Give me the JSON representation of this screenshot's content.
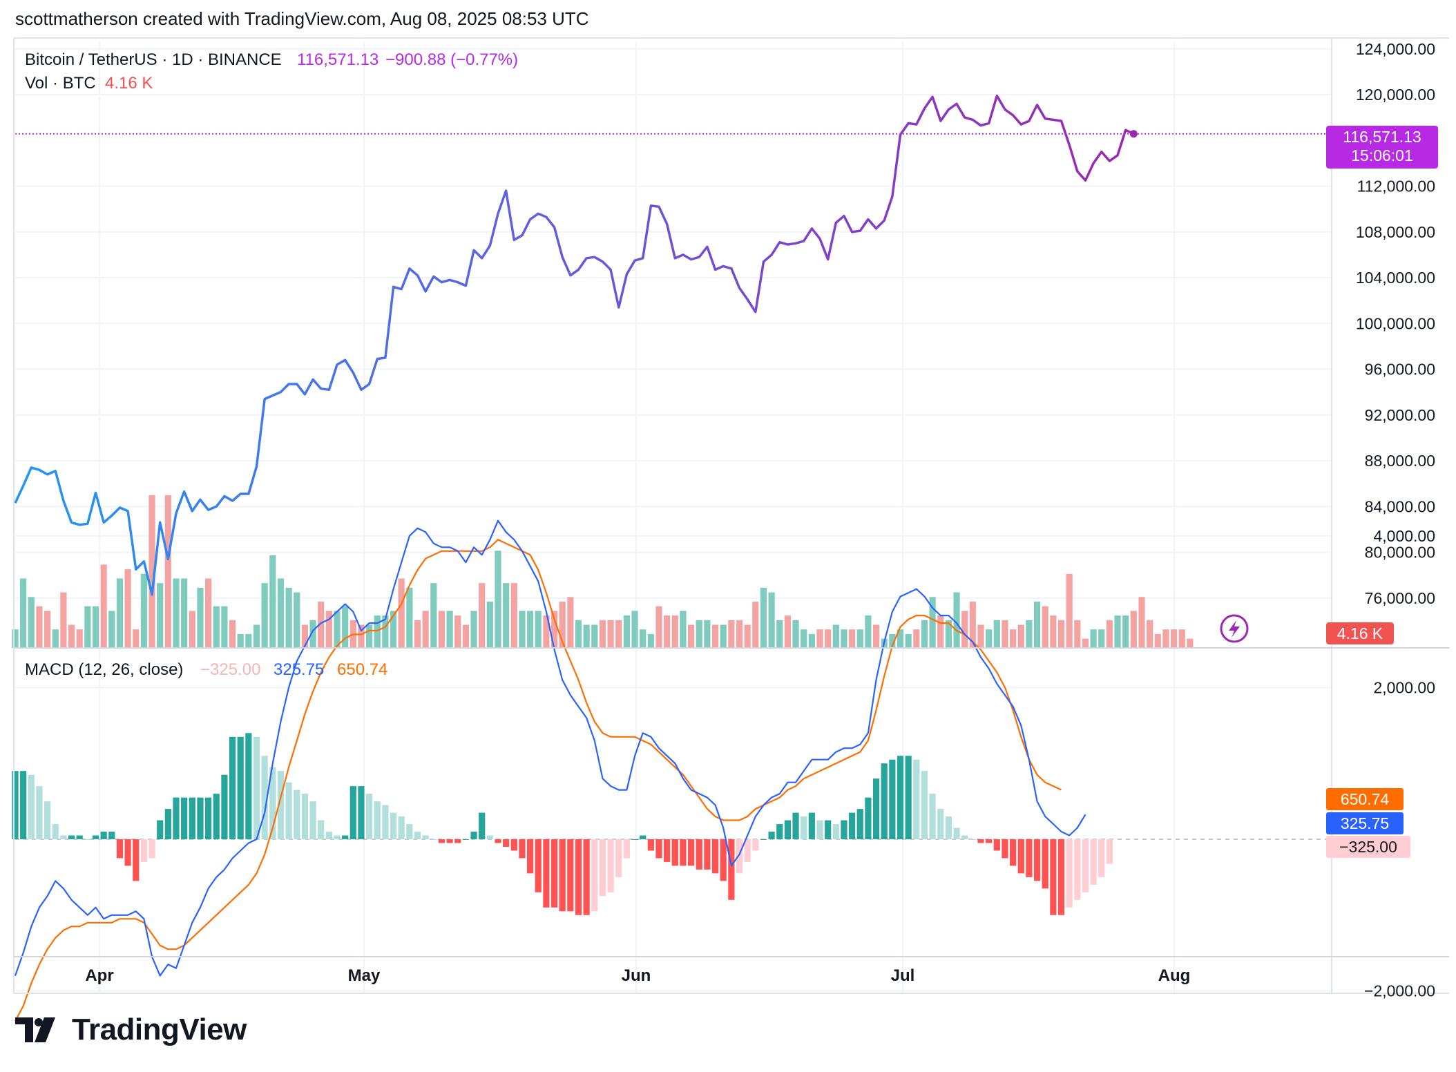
{
  "header": {
    "attribution": "scottmatherson created with TradingView.com, Aug 08, 2025 08:53 UTC"
  },
  "legend": {
    "symbol": "Bitcoin / TetherUS · 1D · BINANCE",
    "last_price": "116,571.13",
    "change": "−900.88 (−0.77%)",
    "volume_label": "Vol · BTC",
    "volume_value": "4.16 K",
    "macd_label": "MACD (12, 26, close)",
    "macd_hist_value": "−325.00",
    "macd_value": "325.75",
    "signal_value": "650.74"
  },
  "price_scale": {
    "ticks": [
      "124,000.00",
      "120,000.00",
      "112,000.00",
      "108,000.00",
      "104,000.00",
      "100,000.00",
      "96,000.00",
      "92,000.00",
      "88,000.00",
      "84,000.00",
      "80,000.00",
      "76,000.00"
    ],
    "last_price_badge": "116,571.13",
    "countdown": "15:06:01",
    "volume_badge": "4.16 K"
  },
  "macd_scale": {
    "ticks": [
      "4,000.00",
      "2,000.00",
      "−2,000.00"
    ],
    "signal_badge": "650.74",
    "macd_badge": "325.75",
    "hist_badge": "−325.00"
  },
  "time_axis": {
    "labels": [
      "Apr",
      "May",
      "Jun",
      "Jul",
      "Aug"
    ]
  },
  "brand": {
    "name": "TradingView"
  },
  "colors": {
    "price_up": "#9c27b0",
    "price_start": "#2196f3",
    "vol_up": "#7fcbbd",
    "vol_down": "#f4a3a3",
    "macd_line": "#2962ff",
    "signal_line": "#ff6d00",
    "hist_up_strong": "#26a69a",
    "hist_up_weak": "#b2dfdb",
    "hist_down_strong": "#ff5252",
    "hist_down_weak": "#ffcdd2",
    "last_price_badge": "#b829e3",
    "volume_badge": "#f05350",
    "bolt_icon": "#9c27b0"
  },
  "chart_data": [
    {
      "type": "line",
      "title": "Bitcoin / TetherUS · 1D · BINANCE",
      "y_range": [
        73000,
        125500
      ],
      "x_labels": [
        "Apr",
        "May",
        "Jun",
        "Jul",
        "Aug"
      ],
      "series": [
        {
          "name": "Bitcoin / TetherUS",
          "values": [
            84300,
            85800,
            87400,
            87200,
            86800,
            87100,
            84500,
            82600,
            82400,
            82500,
            85200,
            82600,
            83200,
            83900,
            83600,
            78500,
            79200,
            76300,
            82600,
            79400,
            83400,
            85300,
            83600,
            84600,
            83700,
            84000,
            84900,
            84500,
            85100,
            85100,
            87500,
            93400,
            93700,
            94000,
            94700,
            94700,
            93800,
            95100,
            94300,
            94200,
            96400,
            96800,
            95700,
            94200,
            94700,
            96900,
            97000,
            103200,
            103000,
            104800,
            104200,
            102800,
            104100,
            103600,
            103800,
            103600,
            103300,
            106400,
            105700,
            106800,
            109600,
            111600,
            107300,
            107700,
            109100,
            109600,
            109300,
            108400,
            105800,
            104200,
            104700,
            105700,
            105800,
            105400,
            104700,
            101400,
            104300,
            105500,
            105700,
            110300,
            110200,
            108700,
            105700,
            106000,
            105600,
            105800,
            106700,
            104700,
            105000,
            104800,
            103100,
            102100,
            101000,
            105400,
            106000,
            107100,
            106900,
            107000,
            107200,
            108300,
            107400,
            105600,
            108800,
            109400,
            108000,
            108100,
            109100,
            108300,
            109000,
            111100,
            116500,
            117500,
            117400,
            118800,
            119800,
            117700,
            118700,
            119200,
            118000,
            117800,
            117300,
            117500,
            119900,
            118700,
            118200,
            117400,
            117700,
            119100,
            117900,
            117800,
            117700,
            115600,
            113300,
            112500,
            114000,
            115000,
            114200,
            114700,
            116900,
            116571.13
          ]
        }
      ]
    },
    {
      "type": "bar",
      "title": "Vol · BTC",
      "y_range": [
        0,
        40
      ],
      "series": [
        {
          "name": "Vol · BTC",
          "values": [
            4,
            15,
            11,
            9,
            8,
            4,
            12,
            5,
            4,
            9,
            9,
            18,
            8,
            15,
            17,
            4,
            16,
            33,
            14,
            33,
            15,
            15,
            8,
            13,
            15,
            9,
            9,
            6,
            3,
            3,
            5,
            14,
            20,
            15,
            13,
            12,
            5,
            6,
            10,
            8,
            8,
            9,
            6,
            5,
            5,
            7,
            7,
            8,
            15,
            13,
            6,
            8,
            14,
            8,
            8,
            7,
            5,
            8,
            14,
            10,
            21,
            14,
            14,
            8,
            8,
            8,
            7,
            8,
            10,
            11,
            6,
            5,
            5,
            6,
            6,
            6,
            7,
            8,
            4,
            3,
            9,
            7,
            7,
            8,
            5,
            6,
            6,
            5,
            5,
            6,
            6,
            5,
            10,
            13,
            12,
            6,
            7,
            6,
            4,
            3,
            4,
            4,
            5,
            4,
            4,
            4,
            7,
            5,
            2,
            3,
            4,
            3,
            4,
            6,
            11,
            7,
            6,
            12,
            8,
            10,
            5,
            4,
            6,
            6,
            4,
            5,
            6,
            10,
            9,
            7,
            6,
            16,
            6,
            2,
            4,
            4,
            6,
            7,
            7,
            8,
            11,
            6,
            3,
            4,
            4,
            4,
            2
          ]
        }
      ]
    },
    {
      "type": "line",
      "title": "MACD (12, 26, close)",
      "y_range": [
        -3500,
        4800
      ],
      "series": [
        {
          "name": "MACD",
          "values": [
            -1800,
            -1500,
            -1150,
            -900,
            -750,
            -550,
            -650,
            -800,
            -900,
            -1000,
            -900,
            -1050,
            -1000,
            -1000,
            -1000,
            -950,
            -1050,
            -1550,
            -1800,
            -1650,
            -1700,
            -1400,
            -1100,
            -900,
            -650,
            -500,
            -400,
            -250,
            -150,
            -50,
            0,
            350,
            1000,
            1550,
            2000,
            2350,
            2550,
            2750,
            2850,
            2900,
            3000,
            3100,
            3000,
            2750,
            2850,
            2850,
            2900,
            3300,
            3650,
            4000,
            4100,
            4050,
            3900,
            3850,
            3850,
            3800,
            3650,
            3850,
            3750,
            3950,
            4200,
            4050,
            3950,
            3800,
            3600,
            3400,
            3000,
            2500,
            2100,
            1900,
            1750,
            1600,
            1300,
            800,
            700,
            650,
            650,
            1100,
            1400,
            1350,
            1200,
            1100,
            1000,
            800,
            650,
            600,
            550,
            450,
            150,
            -350,
            -200,
            50,
            300,
            450,
            550,
            600,
            750,
            750,
            900,
            1050,
            1050,
            1050,
            1150,
            1200,
            1200,
            1250,
            1400,
            2100,
            2600,
            3000,
            3200,
            3250,
            3300,
            3200,
            3050,
            2950,
            2950,
            2850,
            2700,
            2600,
            2400,
            2250,
            2050,
            1900,
            1750,
            1500,
            1050,
            500,
            300,
            200,
            100,
            50,
            150,
            325.75
          ]
        },
        {
          "name": "Signal",
          "values": [
            -2400,
            -2200,
            -1900,
            -1650,
            -1450,
            -1300,
            -1200,
            -1150,
            -1150,
            -1100,
            -1100,
            -1100,
            -1100,
            -1050,
            -1050,
            -1050,
            -1100,
            -1250,
            -1400,
            -1450,
            -1450,
            -1400,
            -1300,
            -1200,
            -1100,
            -1000,
            -900,
            -800,
            -700,
            -600,
            -450,
            -200,
            150,
            550,
            950,
            1300,
            1650,
            1950,
            2200,
            2400,
            2550,
            2650,
            2700,
            2700,
            2750,
            2750,
            2800,
            2950,
            3100,
            3350,
            3550,
            3700,
            3750,
            3800,
            3800,
            3800,
            3800,
            3800,
            3800,
            3850,
            3950,
            3900,
            3850,
            3800,
            3750,
            3550,
            3250,
            2900,
            2600,
            2350,
            2100,
            1800,
            1550,
            1400,
            1350,
            1350,
            1350,
            1350,
            1300,
            1250,
            1150,
            1050,
            950,
            850,
            700,
            550,
            400,
            300,
            250,
            250,
            250,
            300,
            400,
            450,
            500,
            550,
            650,
            700,
            800,
            850,
            900,
            950,
            1000,
            1050,
            1100,
            1150,
            1300,
            1700,
            2150,
            2550,
            2800,
            2900,
            2950,
            2950,
            2900,
            2850,
            2850,
            2750,
            2700,
            2600,
            2500,
            2350,
            2200,
            2000,
            1700,
            1350,
            1050,
            850,
            750,
            700,
            650.74
          ]
        },
        {
          "name": "Histogram",
          "values": [
            900,
            900,
            850,
            700,
            500,
            200,
            50,
            50,
            50,
            0,
            50,
            100,
            100,
            -250,
            -350,
            -550,
            -300,
            -250,
            250,
            400,
            550,
            550,
            550,
            550,
            550,
            600,
            850,
            1350,
            1350,
            1400,
            1350,
            1100,
            950,
            900,
            750,
            650,
            600,
            500,
            250,
            100,
            50,
            50,
            700,
            700,
            600,
            500,
            450,
            350,
            300,
            200,
            100,
            50,
            0,
            -50,
            -50,
            -50,
            0,
            100,
            350,
            50,
            -50,
            -100,
            -150,
            -250,
            -450,
            -700,
            -900,
            -900,
            -950,
            -950,
            -1000,
            -1000,
            -950,
            -750,
            -700,
            -500,
            -250,
            0,
            50,
            -150,
            -250,
            -300,
            -350,
            -350,
            -350,
            -400,
            -400,
            -450,
            -550,
            -800,
            -450,
            -300,
            -150,
            0,
            100,
            200,
            250,
            350,
            300,
            350,
            250,
            250,
            200,
            250,
            350,
            400,
            550,
            800,
            1000,
            1050,
            1100,
            1100,
            1050,
            900,
            600,
            400,
            300,
            150,
            50,
            0,
            -50,
            -50,
            -150,
            -250,
            -350,
            -450,
            -500,
            -550,
            -650,
            -1000,
            -1000,
            -900,
            -800,
            -700,
            -600,
            -500,
            -325
          ]
        }
      ]
    }
  ]
}
